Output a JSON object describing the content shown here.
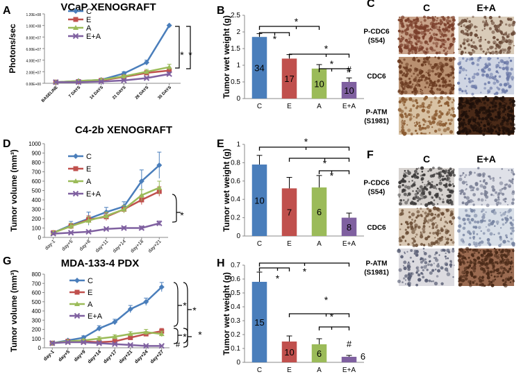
{
  "panels": {
    "A": {
      "letter": "A",
      "title": "VCaP XENOGRAFT",
      "ylabel": "Photons/sec",
      "yticks": [
        "0.00E+00",
        "2.00E+07",
        "4.00E+07",
        "6.00E+07",
        "8.00E+07",
        "1.00E+08",
        "1.20E+08"
      ],
      "xticks": [
        "BASELINE",
        "7 DAYS",
        "14 DAYS",
        "21 DAYS",
        "28 DAYS",
        "35 DAYS"
      ]
    },
    "B": {
      "letter": "B",
      "ylabel": "Tumor wet weight (g)",
      "yticks": [
        "0",
        "0.5",
        "1",
        "1.5",
        "2",
        "2.5"
      ],
      "categories": [
        "C",
        "E",
        "A",
        "E+A"
      ],
      "n": [
        "34",
        "17",
        "10",
        "10"
      ],
      "marks": [
        "#"
      ]
    },
    "C": {
      "letter": "C",
      "col_headers": [
        "C",
        "E+A"
      ],
      "row_labels": [
        "P-CDC6\n(S54)",
        "CDC6",
        "P-ATM\n(S1981)"
      ]
    },
    "D": {
      "letter": "D",
      "title": "C4-2b XENOGRAFT",
      "ylabel": "Tumor volume (mm³)",
      "yticks": [
        "0",
        "100",
        "200",
        "300",
        "400",
        "500",
        "600",
        "700",
        "800",
        "900",
        "1000"
      ],
      "xticks": [
        "day-1",
        "day+5",
        "day+8",
        "day+11",
        "day+14",
        "day+18",
        "day+21"
      ]
    },
    "E": {
      "letter": "E",
      "ylabel": "Tumor wet weight (g)",
      "yticks": [
        "0",
        "0.2",
        "0.4",
        "0.6",
        "0.8",
        "1"
      ],
      "categories": [
        "C",
        "E",
        "A",
        "E+A"
      ],
      "n": [
        "10",
        "7",
        "6",
        "8"
      ]
    },
    "F": {
      "letter": "F",
      "col_headers": [
        "C",
        "E+A"
      ],
      "row_labels": [
        "P-CDC6\n(S54)",
        "CDC6",
        "P-ATM\n(S1981)"
      ]
    },
    "G": {
      "letter": "G",
      "title": "MDA-133-4 PDX",
      "ylabel": "Tumor volume (mm³)",
      "yticks": [
        "0",
        "100",
        "200",
        "300",
        "400",
        "500",
        "600",
        "700",
        "800"
      ],
      "xticks": [
        "day-1",
        "day+5",
        "day+9",
        "day+14",
        "day+17",
        "day+21",
        "day+24",
        "day+27"
      ],
      "marks": [
        "#"
      ]
    },
    "H": {
      "letter": "H",
      "ylabel": "Tumor wet weight (g)",
      "yticks": [
        "0",
        "0.1",
        "0.2",
        "0.3",
        "0.4",
        "0.5",
        "0.6",
        "0.7"
      ],
      "categories": [
        "C",
        "E",
        "A",
        "E+A"
      ],
      "n": [
        "15",
        "10",
        "6",
        "6"
      ],
      "marks": [
        "#"
      ]
    }
  },
  "sig_mark": "*",
  "legend": [
    "C",
    "E",
    "A",
    "E+A"
  ],
  "colors": {
    "C": "#4a7ebb",
    "E": "#c0504d",
    "A": "#9bbb59",
    "E+A": "#7f60a0"
  },
  "chart_data": [
    {
      "panel": "A",
      "type": "line",
      "title": "VCaP XENOGRAFT",
      "ylabel": "Photons/sec",
      "ylim": [
        0,
        120000000
      ],
      "x": [
        "BASELINE",
        "7 DAYS",
        "14 DAYS",
        "21 DAYS",
        "28 DAYS",
        "35 DAYS"
      ],
      "series": [
        {
          "name": "C",
          "values": [
            2000000,
            4000000,
            6000000,
            17000000,
            36000000,
            100000000
          ],
          "err": [
            0,
            1000000,
            2000000,
            3000000,
            4000000,
            0
          ]
        },
        {
          "name": "E",
          "values": [
            2000000,
            3000000,
            5000000,
            11000000,
            18000000,
            22000000
          ],
          "err": [
            0,
            1000000,
            1000000,
            2000000,
            4000000,
            5000000
          ]
        },
        {
          "name": "A",
          "values": [
            2000000,
            4000000,
            6000000,
            12000000,
            20000000,
            28000000
          ],
          "err": [
            0,
            1000000,
            1000000,
            2000000,
            4000000,
            5000000
          ]
        },
        {
          "name": "E+A",
          "values": [
            2000000,
            2000000,
            3000000,
            5000000,
            9000000,
            16000000
          ],
          "err": [
            0,
            500000,
            1000000,
            1000000,
            2000000,
            3000000
          ]
        }
      ]
    },
    {
      "panel": "B",
      "type": "bar",
      "ylabel": "Tumor wet weight (g)",
      "ylim": [
        0,
        2.5
      ],
      "categories": [
        "C",
        "E",
        "A",
        "E+A"
      ],
      "values": [
        1.85,
        1.2,
        0.9,
        0.5
      ],
      "err": [
        0.1,
        0.12,
        0.12,
        0.12
      ]
    },
    {
      "panel": "D",
      "type": "line",
      "title": "C4-2b XENOGRAFT",
      "ylabel": "Tumor volume (mm³)",
      "ylim": [
        0,
        1000
      ],
      "x": [
        "day-1",
        "day+5",
        "day+8",
        "day+11",
        "day+14",
        "day+18",
        "day+21"
      ],
      "series": [
        {
          "name": "C",
          "values": [
            50,
            130,
            200,
            270,
            330,
            600,
            770
          ],
          "err": [
            10,
            40,
            70,
            50,
            50,
            120,
            140
          ]
        },
        {
          "name": "E",
          "values": [
            50,
            120,
            190,
            220,
            300,
            400,
            490
          ],
          "err": [
            10,
            30,
            40,
            40,
            40,
            50,
            50
          ]
        },
        {
          "name": "A",
          "values": [
            50,
            120,
            180,
            230,
            300,
            450,
            530
          ],
          "err": [
            10,
            30,
            40,
            40,
            40,
            60,
            70
          ]
        },
        {
          "name": "E+A",
          "values": [
            40,
            50,
            60,
            90,
            100,
            100,
            150
          ],
          "err": [
            10,
            10,
            10,
            10,
            15,
            20,
            25
          ]
        }
      ]
    },
    {
      "panel": "E",
      "type": "bar",
      "ylabel": "Tumor wet weight (g)",
      "ylim": [
        0,
        1
      ],
      "categories": [
        "C",
        "E",
        "A",
        "E+A"
      ],
      "values": [
        0.78,
        0.52,
        0.53,
        0.2
      ],
      "err": [
        0.1,
        0.12,
        0.13,
        0.05
      ]
    },
    {
      "panel": "G",
      "type": "line",
      "title": "MDA-133-4 PDX",
      "ylabel": "Tumor volume (mm³)",
      "ylim": [
        0,
        800
      ],
      "x": [
        "day-1",
        "day+5",
        "day+9",
        "day+14",
        "day+17",
        "day+21",
        "day+24",
        "day+27"
      ],
      "series": [
        {
          "name": "C",
          "values": [
            50,
            80,
            110,
            210,
            280,
            420,
            500,
            660
          ],
          "err": [
            10,
            10,
            20,
            30,
            30,
            40,
            40,
            50
          ]
        },
        {
          "name": "E",
          "values": [
            50,
            70,
            70,
            60,
            70,
            110,
            150,
            180
          ],
          "err": [
            10,
            10,
            10,
            15,
            15,
            20,
            25,
            30
          ]
        },
        {
          "name": "A",
          "values": [
            50,
            70,
            80,
            100,
            120,
            150,
            170,
            150
          ],
          "err": [
            10,
            10,
            15,
            20,
            20,
            25,
            30,
            30
          ]
        },
        {
          "name": "E+A",
          "values": [
            50,
            60,
            60,
            50,
            40,
            30,
            20,
            20
          ],
          "err": [
            10,
            10,
            10,
            10,
            10,
            10,
            10,
            5
          ]
        }
      ]
    },
    {
      "panel": "H",
      "type": "bar",
      "ylabel": "Tumor wet weight (g)",
      "ylim": [
        0,
        0.7
      ],
      "categories": [
        "C",
        "E",
        "A",
        "E+A"
      ],
      "values": [
        0.58,
        0.15,
        0.13,
        0.04
      ],
      "err": [
        0.07,
        0.04,
        0.04,
        0.01
      ]
    }
  ]
}
